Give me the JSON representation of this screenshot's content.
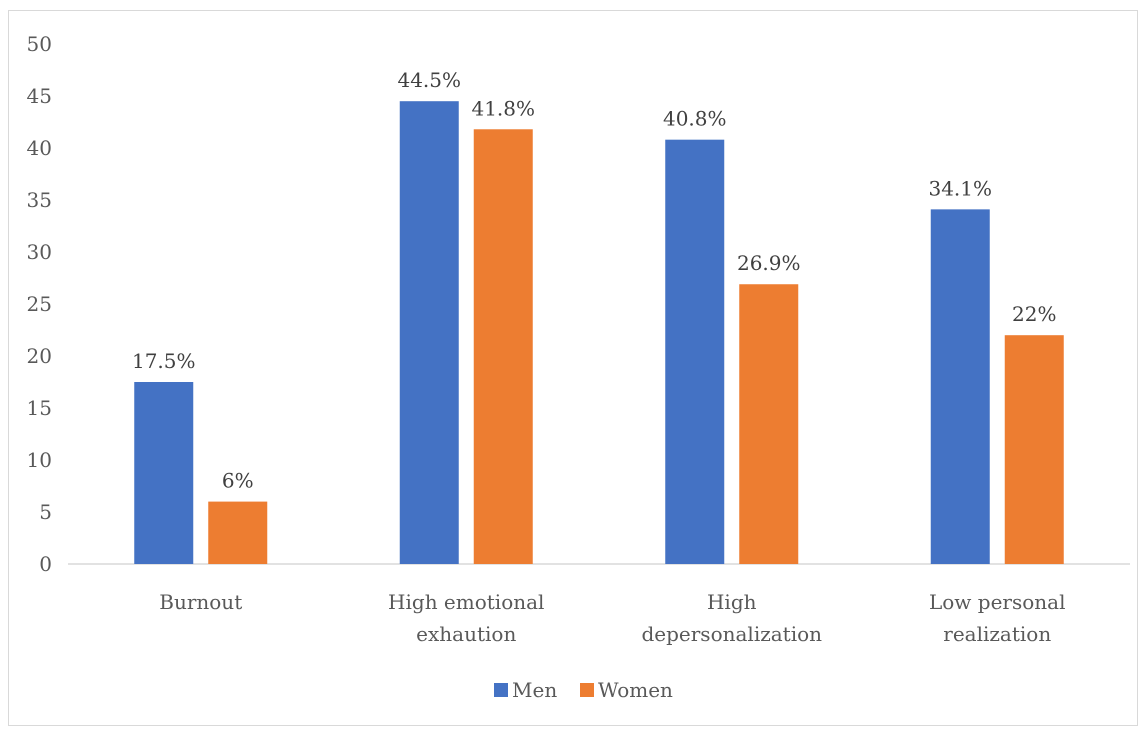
{
  "chart_data": {
    "type": "bar",
    "categories": [
      [
        "Burnout"
      ],
      [
        "High emotional",
        "exhaution"
      ],
      [
        "High",
        "depersonalization"
      ],
      [
        "Low personal",
        "realization"
      ]
    ],
    "series": [
      {
        "name": "Men",
        "color": "#4472c4",
        "values": [
          17.5,
          44.5,
          40.8,
          34.1
        ],
        "labels": [
          "17.5%",
          "44.5%",
          "40.8%",
          "34.1%"
        ]
      },
      {
        "name": "Women",
        "color": "#ed7d31",
        "values": [
          6,
          41.8,
          26.9,
          22
        ],
        "labels": [
          "6%",
          "41.8%",
          "26.9%",
          "22%"
        ]
      }
    ],
    "ylim": [
      0,
      50
    ],
    "yticks": [
      0,
      5,
      10,
      15,
      20,
      25,
      30,
      35,
      40,
      45,
      50
    ],
    "grid": false,
    "legend": "bottom"
  }
}
